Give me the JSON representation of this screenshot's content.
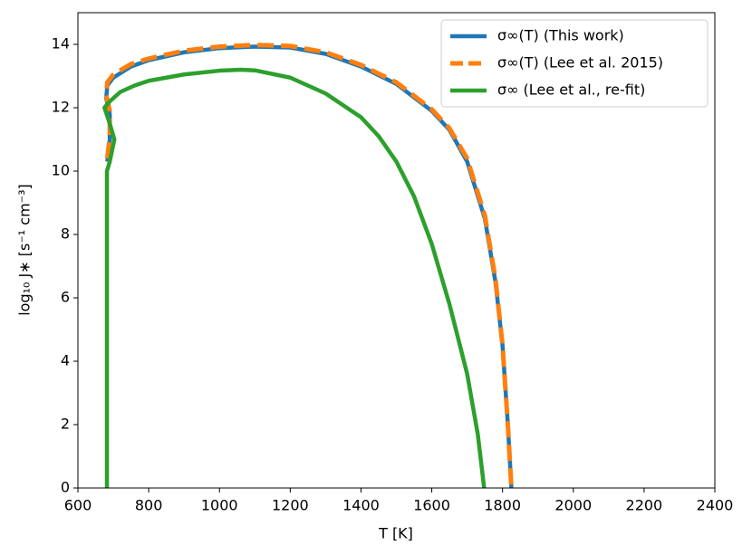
{
  "chart_data": {
    "type": "line",
    "xlabel": "T [K]",
    "ylabel": "log₁₀ J∗ [s⁻¹ cm⁻³]",
    "xlim": [
      600,
      2400
    ],
    "xticks": [
      600,
      800,
      1000,
      1200,
      1400,
      1600,
      1800,
      2000,
      2200,
      2400
    ],
    "ylim": [
      0,
      15
    ],
    "yticks": [
      0,
      2,
      4,
      6,
      8,
      10,
      12,
      14
    ],
    "legend": "upper right",
    "series": [
      {
        "name": "σ∞(T) (This work)",
        "color": "#1f77b4",
        "style": "solid",
        "x": [
          683,
          690,
          690,
          680,
          683,
          700,
          750,
          800,
          900,
          1000,
          1100,
          1200,
          1300,
          1400,
          1500,
          1600,
          1650,
          1700,
          1750,
          1780,
          1800,
          1815,
          1825
        ],
        "values": [
          10.3,
          11.0,
          11.8,
          12.3,
          12.7,
          12.95,
          13.3,
          13.5,
          13.75,
          13.88,
          13.93,
          13.9,
          13.7,
          13.3,
          12.75,
          11.9,
          11.3,
          10.3,
          8.5,
          6.5,
          4.5,
          2.0,
          0
        ]
      },
      {
        "name": "σ∞(T) (Lee et al. 2015)",
        "color": "#ff7f0e",
        "style": "dashed",
        "x": [
          683,
          690,
          690,
          680,
          683,
          700,
          750,
          800,
          900,
          1000,
          1100,
          1200,
          1300,
          1400,
          1500,
          1600,
          1650,
          1700,
          1750,
          1780,
          1800,
          1815,
          1825
        ],
        "values": [
          10.4,
          11.1,
          11.9,
          12.4,
          12.8,
          13.05,
          13.38,
          13.55,
          13.8,
          13.93,
          13.98,
          13.95,
          13.75,
          13.35,
          12.8,
          11.95,
          11.35,
          10.4,
          8.6,
          6.6,
          4.5,
          2.0,
          0
        ]
      },
      {
        "name": "σ∞ (Lee et al., re-fit)",
        "color": "#2ca02c",
        "style": "solid",
        "x": [
          682,
          682,
          690,
          703,
          690,
          675,
          690,
          720,
          760,
          800,
          900,
          1000,
          1060,
          1100,
          1200,
          1300,
          1400,
          1450,
          1500,
          1550,
          1600,
          1650,
          1700,
          1730,
          1748
        ],
        "values": [
          0,
          10.0,
          10.3,
          11.0,
          11.5,
          12.0,
          12.2,
          12.5,
          12.7,
          12.85,
          13.05,
          13.17,
          13.2,
          13.18,
          12.95,
          12.45,
          11.7,
          11.1,
          10.3,
          9.2,
          7.7,
          5.8,
          3.6,
          1.7,
          0
        ]
      }
    ]
  }
}
